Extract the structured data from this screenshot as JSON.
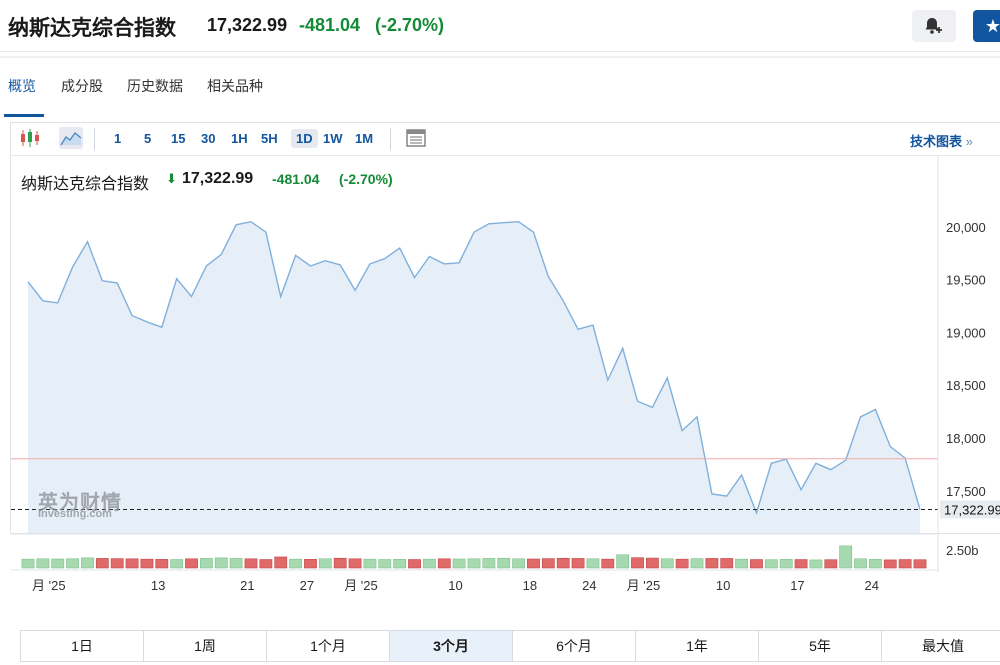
{
  "header": {
    "title": "纳斯达克综合指数",
    "price": "17,322.99",
    "change": "-481.04",
    "percent": "(-2.70%)"
  },
  "nav": {
    "items": [
      "概览",
      "成分股",
      "历史数据",
      "相关品种"
    ]
  },
  "toolbar": {
    "intervals": [
      "1",
      "5",
      "15",
      "30",
      "1H",
      "5H",
      "1D",
      "1W",
      "1M"
    ],
    "active_interval": "1D",
    "tech_chart_label": "技术图表",
    "tech_chart_arrow": "»"
  },
  "legend": {
    "name": "纳斯达克综合指数",
    "arrow": "⬇",
    "price": "17,322.99",
    "change": "-481.04",
    "percent": "(-2.70%)"
  },
  "watermark": {
    "cn": "英为财情",
    "en": "Investing.com"
  },
  "ranges": {
    "items": [
      "1日",
      "1周",
      "1个月",
      "3个月",
      "6个月",
      "1年",
      "5年",
      "最大值"
    ],
    "active": "3个月"
  },
  "colors": {
    "accent": "#1256a0",
    "positive_text": "#138a36",
    "line": "#7fb0dc",
    "area_fill": "#e6eef7",
    "ref_line": "#f0a8a8",
    "volume_up": "#a6d9b0",
    "volume_down": "#e06a6a"
  },
  "chart_data": {
    "type": "area",
    "y_ticks": [
      "20,000",
      "19,500",
      "19,000",
      "18,500",
      "18,000",
      "17,500"
    ],
    "y_tick_values": [
      20000,
      19500,
      19000,
      18500,
      18000,
      17500
    ],
    "ylim": [
      17100,
      20350
    ],
    "current_value_label": "17,322.99",
    "current_value": 17322.99,
    "reference_value": 17804,
    "x_labels": [
      "月 '25",
      "13",
      "21",
      "27",
      "月 '25",
      "10",
      "18",
      "24",
      "月 '25",
      "10",
      "17",
      "24"
    ],
    "x_label_index": [
      0,
      8,
      14,
      18,
      21,
      28,
      33,
      37,
      40,
      46,
      51,
      56
    ],
    "values": [
      19480,
      19300,
      19280,
      19620,
      19860,
      19490,
      19470,
      19160,
      19100,
      19050,
      19510,
      19340,
      19630,
      19740,
      20020,
      20050,
      19950,
      19340,
      19730,
      19630,
      19680,
      19640,
      19400,
      19650,
      19700,
      19800,
      19520,
      19720,
      19650,
      19660,
      19950,
      20030,
      20040,
      20050,
      19950,
      19530,
      19300,
      19030,
      19070,
      18550,
      18850,
      18350,
      18290,
      18570,
      18070,
      18200,
      17470,
      17450,
      17650,
      17290,
      17760,
      17800,
      17510,
      17760,
      17700,
      17790,
      18200,
      18270,
      17920,
      17810,
      17323
    ],
    "volume_label": "2.50b",
    "volume": [
      0.48,
      0.5,
      0.49,
      0.5,
      0.55,
      0.52,
      0.51,
      0.5,
      0.48,
      0.47,
      0.46,
      0.5,
      0.52,
      0.55,
      0.52,
      0.5,
      0.46,
      0.6,
      0.48,
      0.47,
      0.5,
      0.53,
      0.5,
      0.48,
      0.46,
      0.47,
      0.46,
      0.48,
      0.5,
      0.49,
      0.5,
      0.52,
      0.53,
      0.5,
      0.49,
      0.51,
      0.53,
      0.52,
      0.5,
      0.48,
      0.72,
      0.56,
      0.54,
      0.5,
      0.48,
      0.51,
      0.52,
      0.52,
      0.48,
      0.46,
      0.45,
      0.47,
      0.46,
      0.44,
      0.45,
      1.2,
      0.5,
      0.47,
      0.44,
      0.46,
      0.45
    ],
    "volume_up": [
      true,
      true,
      true,
      true,
      true,
      false,
      false,
      false,
      false,
      false,
      true,
      false,
      true,
      true,
      true,
      false,
      false,
      false,
      true,
      false,
      true,
      false,
      false,
      true,
      true,
      true,
      false,
      true,
      false,
      true,
      true,
      true,
      true,
      true,
      false,
      false,
      false,
      false,
      true,
      false,
      true,
      false,
      false,
      true,
      false,
      true,
      false,
      false,
      true,
      false,
      true,
      true,
      false,
      true,
      false,
      true,
      true,
      true,
      false,
      false,
      false
    ],
    "grid": false
  }
}
